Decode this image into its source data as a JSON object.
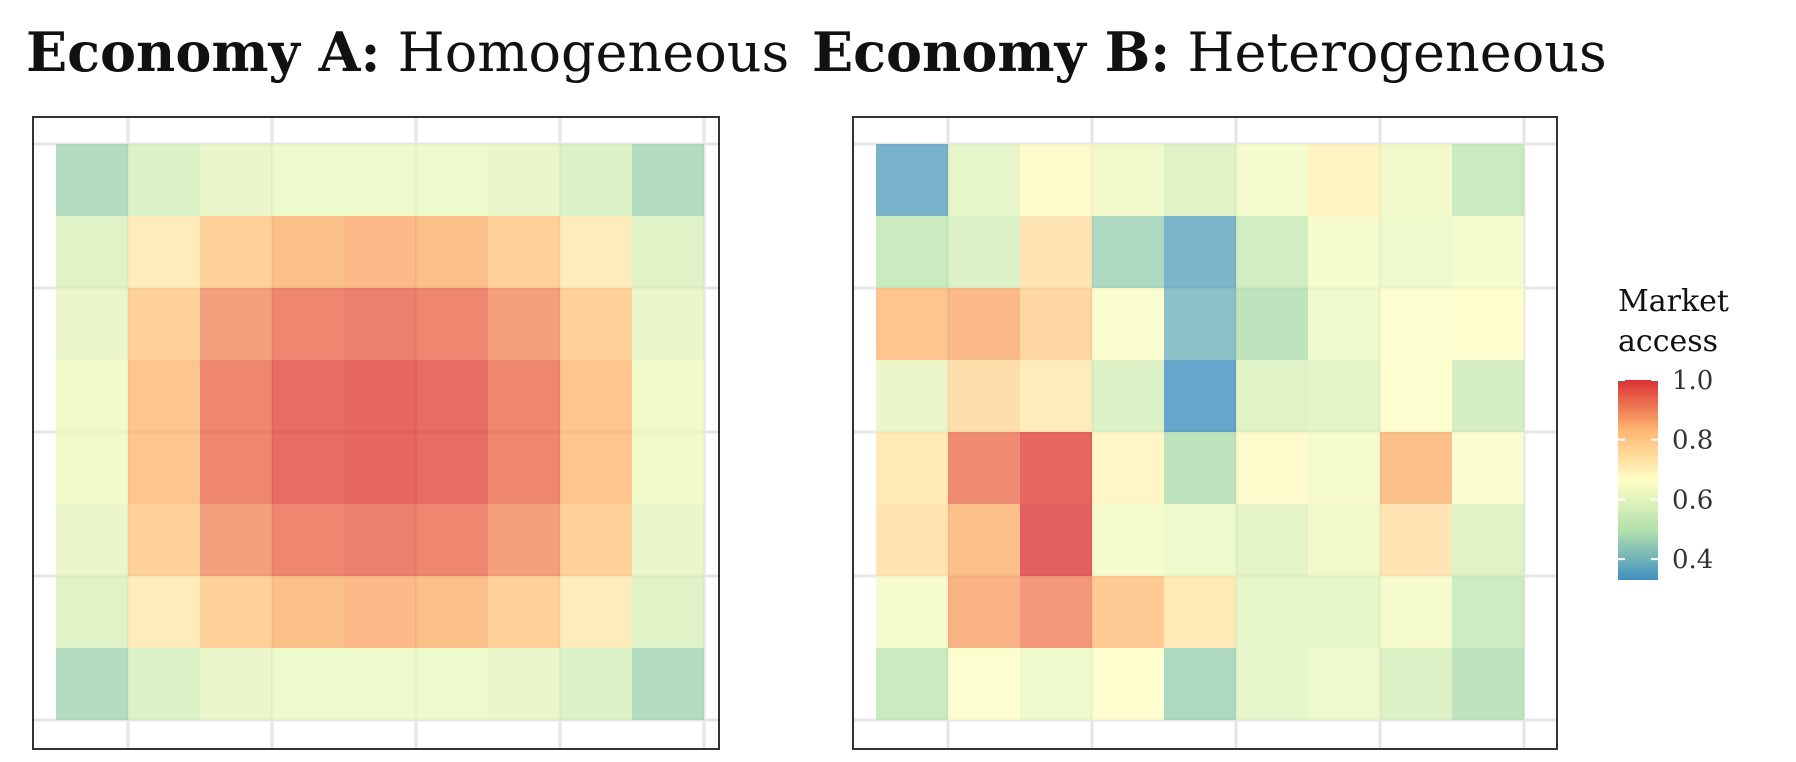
{
  "panels": {
    "a": {
      "title_bold": "Economy A:",
      "title_rest": "Homogeneous"
    },
    "b": {
      "title_bold": "Economy B:",
      "title_rest": "Heterogeneous"
    }
  },
  "legend": {
    "title_line1": "Market",
    "title_line2": "access",
    "ticks": [
      "1.0",
      "0.8",
      "0.6",
      "0.4"
    ],
    "tick_values": [
      1.0,
      0.8,
      0.6,
      0.4
    ],
    "range": [
      0.33,
      1.0
    ],
    "colors": [
      "#2b83ba",
      "#abdda4",
      "#ffffbf",
      "#fdae61",
      "#d7191c"
    ]
  },
  "chart_data": [
    {
      "type": "heatmap",
      "title": "Economy A: Homogeneous",
      "grid": true,
      "rows": 8,
      "cols": 9,
      "values": [
        [
          0.47,
          0.57,
          0.61,
          0.62,
          0.62,
          0.62,
          0.61,
          0.57,
          0.47
        ],
        [
          0.58,
          0.72,
          0.8,
          0.84,
          0.85,
          0.84,
          0.8,
          0.72,
          0.58
        ],
        [
          0.61,
          0.8,
          0.89,
          0.93,
          0.94,
          0.93,
          0.89,
          0.8,
          0.61
        ],
        [
          0.63,
          0.83,
          0.93,
          0.97,
          0.98,
          0.97,
          0.93,
          0.83,
          0.63
        ],
        [
          0.63,
          0.83,
          0.93,
          0.97,
          0.98,
          0.97,
          0.93,
          0.83,
          0.63
        ],
        [
          0.61,
          0.8,
          0.89,
          0.93,
          0.94,
          0.93,
          0.89,
          0.8,
          0.61
        ],
        [
          0.58,
          0.72,
          0.8,
          0.84,
          0.85,
          0.84,
          0.8,
          0.72,
          0.58
        ],
        [
          0.47,
          0.57,
          0.61,
          0.62,
          0.62,
          0.62,
          0.61,
          0.57,
          0.47
        ]
      ]
    },
    {
      "type": "heatmap",
      "title": "Economy B: Heterogeneous",
      "grid": true,
      "rows": 8,
      "cols": 9,
      "values": [
        [
          0.36,
          0.6,
          0.68,
          0.63,
          0.58,
          0.64,
          0.7,
          0.63,
          0.52
        ],
        [
          0.52,
          0.57,
          0.74,
          0.46,
          0.37,
          0.54,
          0.64,
          0.62,
          0.64
        ],
        [
          0.83,
          0.85,
          0.78,
          0.65,
          0.4,
          0.49,
          0.62,
          0.66,
          0.67
        ],
        [
          0.61,
          0.76,
          0.72,
          0.57,
          0.33,
          0.58,
          0.59,
          0.66,
          0.55
        ],
        [
          0.73,
          0.92,
          0.98,
          0.69,
          0.49,
          0.68,
          0.64,
          0.84,
          0.65
        ],
        [
          0.74,
          0.84,
          0.99,
          0.64,
          0.62,
          0.59,
          0.63,
          0.74,
          0.58
        ],
        [
          0.64,
          0.86,
          0.9,
          0.82,
          0.73,
          0.6,
          0.6,
          0.64,
          0.53
        ],
        [
          0.52,
          0.66,
          0.62,
          0.67,
          0.46,
          0.6,
          0.62,
          0.57,
          0.49
        ]
      ]
    }
  ]
}
